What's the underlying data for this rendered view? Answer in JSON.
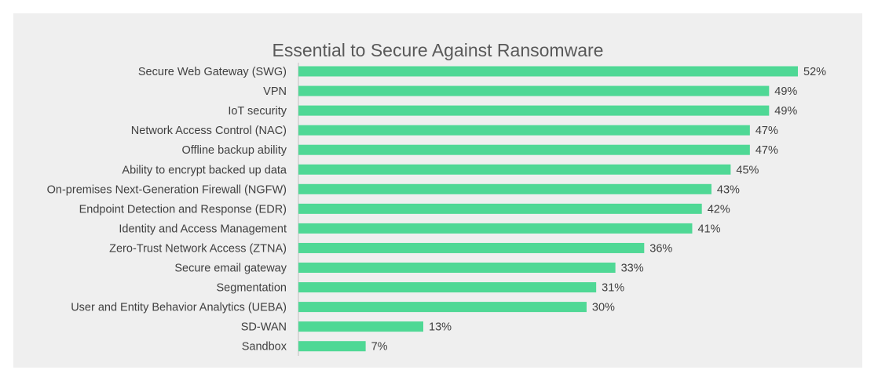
{
  "chart_data": {
    "type": "bar",
    "orientation": "horizontal",
    "title": "Essential to Secure Against Ransomware",
    "categories": [
      "Secure Web Gateway (SWG)",
      "VPN",
      "IoT security",
      "Network Access Control (NAC)",
      "Offline backup ability",
      "Ability to encrypt backed up data",
      "On-premises Next-Generation Firewall (NGFW)",
      "Endpoint Detection and Response (EDR)",
      "Identity and Access Management",
      "Zero-Trust Network Access (ZTNA)",
      "Secure email gateway",
      "Segmentation",
      "User and Entity Behavior Analytics (UEBA)",
      "SD-WAN",
      "Sandbox"
    ],
    "values": [
      52,
      49,
      49,
      47,
      47,
      45,
      43,
      42,
      41,
      36,
      33,
      31,
      30,
      13,
      7
    ],
    "data_labels": [
      "52%",
      "49%",
      "49%",
      "47%",
      "47%",
      "45%",
      "43%",
      "42%",
      "41%",
      "36%",
      "33%",
      "31%",
      "30%",
      "13%",
      "7%"
    ],
    "xlabel": "",
    "ylabel": "",
    "xlim": [
      0,
      52
    ],
    "grid": false,
    "legend": "none",
    "bar_color": "#4fd895",
    "background_color": "#efefef"
  }
}
